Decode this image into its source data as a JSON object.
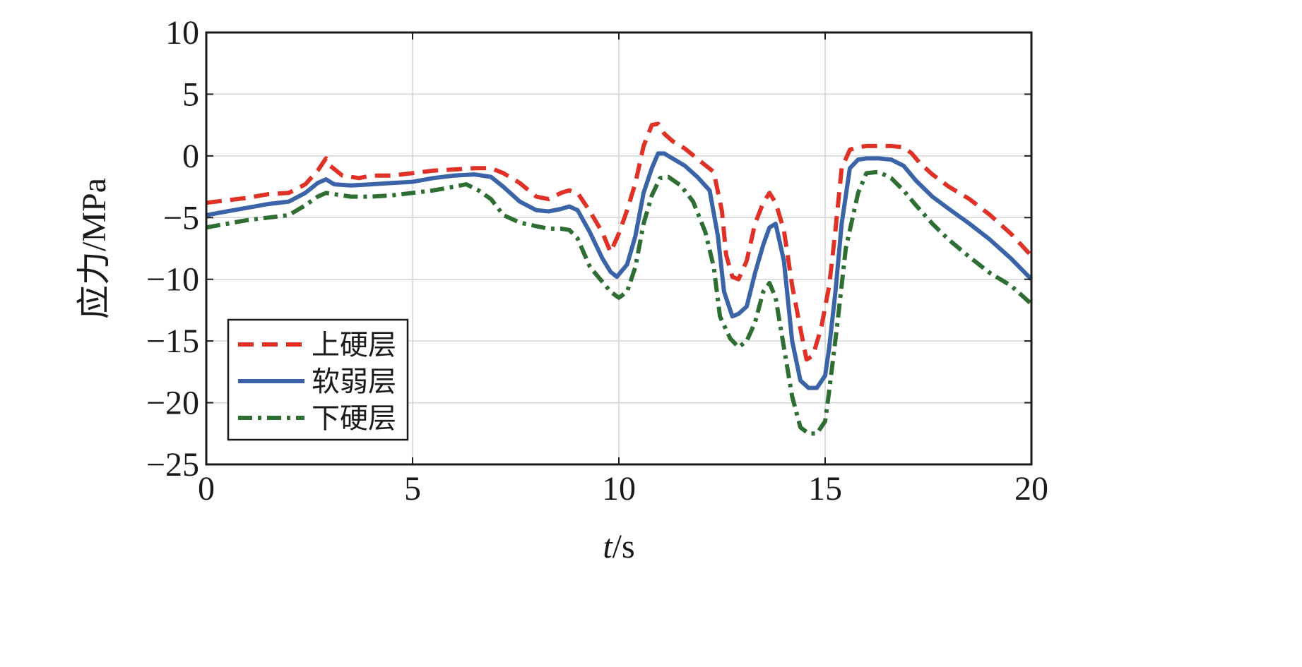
{
  "chart_data": {
    "type": "line",
    "title": "",
    "xlabel": "t/s",
    "xlabel_italic": "t",
    "xlabel_rest": "/s",
    "ylabel": "应力/MPa",
    "xlim": [
      0,
      20
    ],
    "ylim": [
      -25,
      10
    ],
    "xticks": [
      0,
      5,
      10,
      15,
      20
    ],
    "yticks": [
      10,
      5,
      0,
      -5,
      -10,
      -15,
      -20,
      -25
    ],
    "xtick_labels": [
      "0",
      "5",
      "10",
      "15",
      "20"
    ],
    "ytick_labels": [
      "10",
      "5",
      "0",
      "−5",
      "−10",
      "−15",
      "−20",
      "−25"
    ],
    "grid": true,
    "legend_position": "bottom-left",
    "series": [
      {
        "name": "上硬层",
        "color": "#e03127",
        "dash": "dashed",
        "x": [
          0,
          0.5,
          1,
          1.5,
          2,
          2.4,
          2.7,
          2.9,
          3.0,
          3.3,
          3.7,
          4.0,
          4.5,
          5.0,
          5.5,
          6.0,
          6.5,
          6.9,
          7.2,
          7.6,
          8.0,
          8.3,
          8.6,
          8.8,
          9.0,
          9.3,
          9.6,
          9.8,
          10.0,
          10.2,
          10.4,
          10.6,
          10.8,
          10.95,
          11.1,
          11.3,
          11.6,
          12.0,
          12.3,
          12.5,
          12.6,
          12.75,
          12.9,
          13.1,
          13.3,
          13.5,
          13.65,
          13.8,
          14.0,
          14.2,
          14.4,
          14.55,
          14.7,
          14.9,
          15.1,
          15.25,
          15.4,
          15.6,
          15.8,
          16.0,
          16.3,
          16.6,
          16.9,
          17.1,
          17.3,
          17.6,
          18.0,
          18.5,
          19.0,
          19.5,
          20.0
        ],
        "y": [
          -3.8,
          -3.6,
          -3.4,
          -3.1,
          -3.0,
          -2.3,
          -1.2,
          -0.2,
          -0.8,
          -1.6,
          -1.8,
          -1.6,
          -1.6,
          -1.4,
          -1.2,
          -1.1,
          -1.0,
          -1.0,
          -1.4,
          -2.2,
          -3.3,
          -3.5,
          -3.0,
          -2.8,
          -3.0,
          -4.5,
          -6.2,
          -7.8,
          -6.3,
          -4.4,
          -2.2,
          0.8,
          2.5,
          2.6,
          1.8,
          1.2,
          0.6,
          -0.5,
          -1.3,
          -4.5,
          -8.0,
          -9.8,
          -10.0,
          -8.5,
          -5.5,
          -3.8,
          -3.0,
          -3.8,
          -6.0,
          -10.5,
          -14.0,
          -16.5,
          -16.2,
          -14.0,
          -10.5,
          -6.0,
          -1.0,
          0.5,
          0.7,
          0.8,
          0.8,
          0.8,
          0.7,
          0.2,
          -0.6,
          -1.5,
          -2.5,
          -3.5,
          -4.8,
          -6.3,
          -8.1
        ]
      },
      {
        "name": "软弱层",
        "color": "#3a63a8",
        "dash": "solid",
        "x": [
          0,
          0.5,
          1,
          1.5,
          2,
          2.4,
          2.7,
          2.9,
          3.1,
          3.5,
          4.0,
          4.5,
          5.0,
          5.5,
          6.0,
          6.5,
          6.9,
          7.2,
          7.6,
          8.0,
          8.3,
          8.6,
          8.8,
          9.0,
          9.3,
          9.6,
          9.8,
          9.95,
          10.2,
          10.4,
          10.6,
          10.8,
          10.95,
          11.1,
          11.3,
          11.6,
          11.9,
          12.2,
          12.4,
          12.55,
          12.75,
          12.9,
          13.1,
          13.3,
          13.5,
          13.65,
          13.8,
          14.0,
          14.2,
          14.4,
          14.6,
          14.8,
          15.0,
          15.1,
          15.25,
          15.4,
          15.6,
          15.8,
          16.0,
          16.3,
          16.6,
          16.9,
          17.2,
          17.6,
          18.0,
          18.5,
          19.0,
          19.5,
          20.0
        ],
        "y": [
          -4.8,
          -4.5,
          -4.2,
          -3.9,
          -3.7,
          -3.0,
          -2.2,
          -1.9,
          -2.3,
          -2.4,
          -2.3,
          -2.2,
          -2.1,
          -1.8,
          -1.6,
          -1.5,
          -1.7,
          -2.5,
          -3.7,
          -4.4,
          -4.5,
          -4.3,
          -4.1,
          -4.4,
          -6.2,
          -8.3,
          -9.4,
          -9.8,
          -8.8,
          -6.5,
          -3.0,
          -1.0,
          0.2,
          0.2,
          -0.2,
          -0.8,
          -1.7,
          -2.8,
          -6.5,
          -11.0,
          -13.0,
          -12.8,
          -12.2,
          -9.5,
          -7.2,
          -5.8,
          -5.5,
          -8.5,
          -15.0,
          -18.2,
          -18.8,
          -18.8,
          -17.8,
          -15.5,
          -11.0,
          -5.5,
          -1.0,
          -0.3,
          -0.2,
          -0.2,
          -0.3,
          -0.8,
          -2.0,
          -3.3,
          -4.3,
          -5.5,
          -6.8,
          -8.3,
          -10.0
        ]
      },
      {
        "name": "下硬层",
        "color": "#2f6e33",
        "dash": "dashdot",
        "x": [
          0,
          0.5,
          1,
          1.5,
          2,
          2.4,
          2.7,
          2.9,
          3.1,
          3.5,
          4.0,
          4.5,
          5.0,
          5.5,
          6.0,
          6.3,
          6.6,
          6.9,
          7.2,
          7.6,
          8.0,
          8.3,
          8.6,
          8.8,
          9.0,
          9.3,
          9.6,
          9.8,
          10.0,
          10.2,
          10.4,
          10.6,
          10.8,
          11.0,
          11.2,
          11.5,
          11.8,
          12.1,
          12.3,
          12.45,
          12.7,
          12.9,
          13.1,
          13.3,
          13.5,
          13.65,
          13.8,
          14.0,
          14.2,
          14.4,
          14.6,
          14.8,
          15.0,
          15.1,
          15.3,
          15.5,
          15.8,
          16.0,
          16.3,
          16.6,
          16.9,
          17.2,
          17.6,
          18.0,
          18.5,
          19.0,
          19.5,
          20.0
        ],
        "y": [
          -5.8,
          -5.5,
          -5.2,
          -5.0,
          -4.8,
          -4.0,
          -3.3,
          -3.0,
          -3.1,
          -3.3,
          -3.3,
          -3.2,
          -3.0,
          -2.8,
          -2.5,
          -2.3,
          -2.8,
          -3.5,
          -4.8,
          -5.4,
          -5.7,
          -5.9,
          -5.9,
          -6.0,
          -6.7,
          -9.0,
          -10.2,
          -11.0,
          -11.5,
          -11.0,
          -9.0,
          -5.5,
          -3.2,
          -1.8,
          -1.7,
          -2.4,
          -3.7,
          -6.2,
          -9.0,
          -13.0,
          -14.8,
          -15.5,
          -15.0,
          -13.5,
          -11.0,
          -10.3,
          -11.5,
          -15.5,
          -19.5,
          -22.0,
          -22.5,
          -22.5,
          -21.5,
          -19.0,
          -13.5,
          -7.5,
          -3.0,
          -1.4,
          -1.3,
          -1.8,
          -2.8,
          -4.0,
          -5.5,
          -6.8,
          -8.2,
          -9.5,
          -10.5,
          -12.0
        ]
      }
    ]
  }
}
